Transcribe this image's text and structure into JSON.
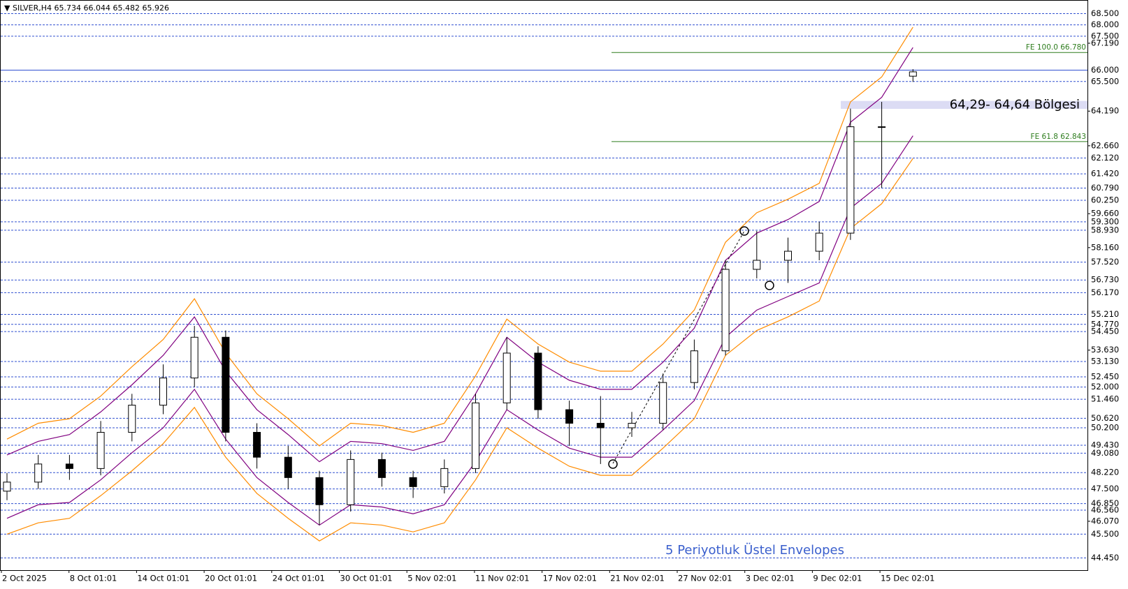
{
  "chart_data": {
    "type": "candlestick",
    "symbol": "SILVER,H4",
    "annotation": "5 Periyotluk Üstel Envelopes",
    "ylim": [
      43.91,
      69.1
    ],
    "candles": [
      {
        "open": 47.4,
        "high": 48.2,
        "low": 47.0,
        "close": 47.8
      },
      {
        "open": 47.8,
        "high": 49.0,
        "low": 47.5,
        "close": 48.6
      },
      {
        "open": 48.6,
        "high": 49.0,
        "low": 47.9,
        "close": 48.4
      },
      {
        "open": 48.4,
        "high": 50.5,
        "low": 48.1,
        "close": 50.0
      },
      {
        "open": 50.0,
        "high": 51.7,
        "low": 49.6,
        "close": 51.2
      },
      {
        "open": 51.2,
        "high": 53.0,
        "low": 50.8,
        "close": 52.4
      },
      {
        "open": 52.4,
        "high": 54.7,
        "low": 52.0,
        "close": 54.2
      },
      {
        "open": 54.2,
        "high": 54.5,
        "low": 49.6,
        "close": 50.0
      },
      {
        "open": 50.0,
        "high": 50.4,
        "low": 48.4,
        "close": 48.9
      },
      {
        "open": 48.9,
        "high": 49.4,
        "low": 47.5,
        "close": 48.0
      },
      {
        "open": 48.0,
        "high": 48.3,
        "low": 45.9,
        "close": 46.8
      },
      {
        "open": 46.8,
        "high": 49.2,
        "low": 46.5,
        "close": 48.8
      },
      {
        "open": 48.8,
        "high": 49.1,
        "low": 47.6,
        "close": 48.0
      },
      {
        "open": 48.0,
        "high": 48.3,
        "low": 47.1,
        "close": 47.6
      },
      {
        "open": 47.6,
        "high": 48.8,
        "low": 47.3,
        "close": 48.4
      },
      {
        "open": 48.4,
        "high": 51.7,
        "low": 48.2,
        "close": 51.3
      },
      {
        "open": 51.3,
        "high": 54.2,
        "low": 51.0,
        "close": 53.5
      },
      {
        "open": 53.5,
        "high": 53.8,
        "low": 50.6,
        "close": 51.0
      },
      {
        "open": 51.0,
        "high": 51.4,
        "low": 49.4,
        "close": 50.4
      },
      {
        "open": 50.4,
        "high": 51.6,
        "low": 48.6,
        "close": 50.2
      },
      {
        "open": 50.2,
        "high": 50.9,
        "low": 49.8,
        "close": 50.4
      },
      {
        "open": 50.4,
        "high": 52.6,
        "low": 50.1,
        "close": 52.2
      },
      {
        "open": 52.2,
        "high": 54.1,
        "low": 51.9,
        "close": 53.6
      },
      {
        "open": 53.6,
        "high": 57.6,
        "low": 53.4,
        "close": 57.2
      },
      {
        "open": 57.2,
        "high": 58.9,
        "low": 56.8,
        "close": 57.6
      },
      {
        "open": 57.6,
        "high": 58.6,
        "low": 56.6,
        "close": 58.0
      },
      {
        "open": 58.0,
        "high": 59.3,
        "low": 57.6,
        "close": 58.8
      },
      {
        "open": 58.8,
        "high": 64.3,
        "low": 58.5,
        "close": 63.5
      },
      {
        "open": 63.5,
        "high": 64.6,
        "low": 60.8,
        "close": 63.5
      },
      {
        "open": 65.734,
        "high": 66.044,
        "low": 65.482,
        "close": 65.926
      }
    ],
    "envelopes": [
      {
        "color": "#ff8c00",
        "values": [
          49.7,
          50.4,
          50.6,
          51.6,
          52.9,
          54.1,
          55.9,
          53.5,
          51.7,
          50.6,
          49.4,
          50.4,
          50.3,
          50.0,
          50.4,
          52.5,
          55.0,
          53.9,
          53.1,
          52.7,
          52.7,
          53.9,
          55.4,
          58.4,
          59.7,
          60.3,
          61.0,
          64.6,
          65.7,
          67.9
        ]
      },
      {
        "color": "#800080",
        "values": [
          49.0,
          49.6,
          49.9,
          50.9,
          52.1,
          53.4,
          55.1,
          52.7,
          51.0,
          49.9,
          48.7,
          49.6,
          49.5,
          49.2,
          49.6,
          51.7,
          54.2,
          53.1,
          52.3,
          51.9,
          51.9,
          53.1,
          54.6,
          57.6,
          58.8,
          59.4,
          60.2,
          63.7,
          64.8,
          67.0
        ]
      },
      {
        "color": "#800080",
        "values": [
          46.2,
          46.8,
          46.9,
          47.9,
          49.1,
          50.2,
          51.9,
          49.7,
          48.0,
          46.9,
          45.9,
          46.8,
          46.7,
          46.4,
          46.8,
          48.7,
          51.0,
          50.1,
          49.3,
          48.9,
          48.9,
          50.1,
          51.4,
          54.2,
          55.4,
          56.0,
          56.6,
          59.9,
          61.0,
          63.1
        ]
      },
      {
        "color": "#ff8c00",
        "values": [
          45.5,
          46.0,
          46.2,
          47.2,
          48.3,
          49.5,
          51.1,
          48.9,
          47.3,
          46.2,
          45.2,
          46.0,
          45.9,
          45.6,
          46.0,
          47.9,
          50.2,
          49.3,
          48.5,
          48.1,
          48.1,
          49.3,
          50.6,
          53.4,
          54.5,
          55.1,
          55.8,
          59.0,
          60.1,
          62.1
        ]
      }
    ],
    "xlabels": [
      "2 Oct 2025",
      "8 Oct 01:01",
      "14 Oct 01:01",
      "20 Oct 01:01",
      "24 Oct 01:01",
      "30 Oct 01:01",
      "5 Nov 02:01",
      "11 Nov 02:01",
      "17 Nov 02:01",
      "21 Nov 02:01",
      "27 Nov 02:01",
      "3 Dec 02:01",
      "9 Dec 02:01",
      "15 Dec 02:01"
    ],
    "yticks": [
      {
        "value": 67.19,
        "label": "67.190"
      },
      {
        "value": 64.19,
        "label": "64.190"
      },
      {
        "value": 62.66,
        "label": "62.660"
      },
      {
        "value": 59.66,
        "label": "59.660"
      },
      {
        "value": 58.16,
        "label": "58.160"
      },
      {
        "value": 53.63,
        "label": "53.630"
      },
      {
        "value": 46.07,
        "label": "46.070"
      }
    ],
    "levels": [
      {
        "value": 68.5,
        "label": "68.500"
      },
      {
        "value": 68.0,
        "label": "68.000"
      },
      {
        "value": 67.5,
        "label": "67.500"
      },
      {
        "value": 66.0,
        "label": "66.000"
      },
      {
        "value": 65.5,
        "label": "65.500"
      },
      {
        "value": 62.12,
        "label": "62.120"
      },
      {
        "value": 61.42,
        "label": "61.420"
      },
      {
        "value": 60.79,
        "label": "60.790"
      },
      {
        "value": 60.25,
        "label": "60.250"
      },
      {
        "value": 59.3,
        "label": "59.300"
      },
      {
        "value": 58.93,
        "label": "58.930"
      },
      {
        "value": 57.52,
        "label": "57.520"
      },
      {
        "value": 56.73,
        "label": "56.730"
      },
      {
        "value": 56.17,
        "label": "56.170"
      },
      {
        "value": 55.21,
        "label": "55.210"
      },
      {
        "value": 54.77,
        "label": "54.770"
      },
      {
        "value": 54.45,
        "label": "54.450"
      },
      {
        "value": 53.13,
        "label": "53.130"
      },
      {
        "value": 52.45,
        "label": "52.450"
      },
      {
        "value": 52.0,
        "label": "52.000"
      },
      {
        "value": 51.46,
        "label": "51.460"
      },
      {
        "value": 50.62,
        "label": "50.620"
      },
      {
        "value": 50.2,
        "label": "50.200"
      },
      {
        "value": 49.43,
        "label": "49.430"
      },
      {
        "value": 49.08,
        "label": "49.080"
      },
      {
        "value": 48.22,
        "label": "48.220"
      },
      {
        "value": 47.5,
        "label": "47.500"
      },
      {
        "value": 46.85,
        "label": "46.850"
      },
      {
        "value": 46.56,
        "label": "46.560"
      },
      {
        "value": 45.5,
        "label": "45.500"
      },
      {
        "value": 44.45,
        "label": "44.450"
      }
    ],
    "fibo": [
      {
        "text": "FE 100.0 66.780",
        "value": 66.78
      },
      {
        "text": "FE 61.8 62.843",
        "value": 62.843
      }
    ],
    "zone": {
      "label": "64,29- 64,64 Bölgesi",
      "from": 64.29,
      "to": 64.64
    }
  }
}
